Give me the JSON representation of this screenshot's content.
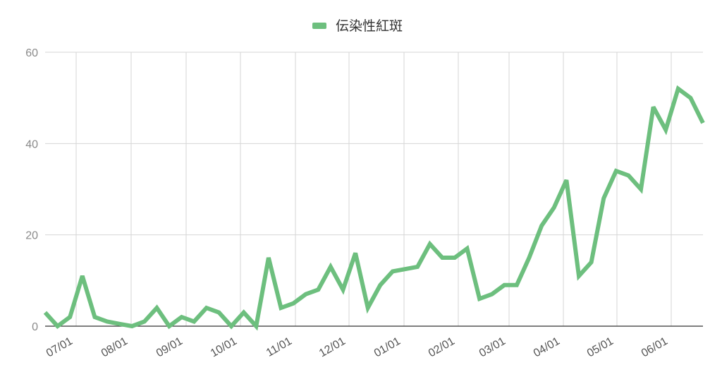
{
  "chart_data": {
    "type": "line",
    "title": "",
    "xlabel": "",
    "ylabel": "",
    "ylim": [
      0,
      60
    ],
    "grid": true,
    "legend_position": "top-center",
    "y_ticks": [
      "0",
      "20",
      "40",
      "60"
    ],
    "x_ticks": [
      "07/01",
      "08/01",
      "09/01",
      "10/01",
      "11/01",
      "12/01",
      "01/01",
      "02/01",
      "03/01",
      "04/01",
      "05/01",
      "06/01"
    ],
    "series": [
      {
        "name": "伝染性紅斑",
        "color": "#6dbf7e",
        "values": [
          3,
          0,
          2,
          11,
          2,
          1,
          0.5,
          0,
          1,
          4,
          0,
          2,
          1,
          4,
          3,
          0,
          3,
          0,
          15,
          4,
          5,
          7,
          8,
          13,
          8,
          16,
          4,
          9,
          12,
          12.5,
          13,
          18,
          15,
          15,
          17,
          6,
          7,
          9,
          9,
          15,
          22,
          26,
          32,
          11,
          14,
          28,
          34,
          33,
          30,
          48,
          43,
          52,
          50,
          44.5
        ]
      }
    ]
  }
}
